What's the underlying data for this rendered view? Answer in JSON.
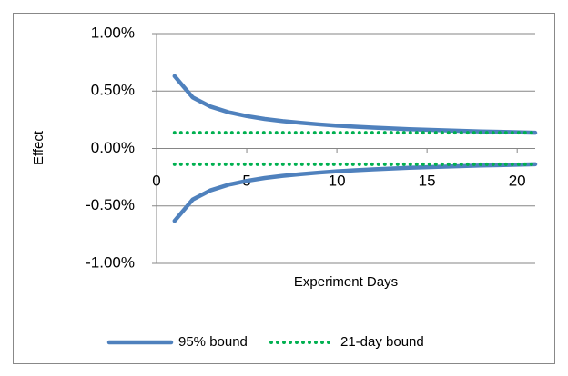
{
  "chart_data": {
    "type": "line",
    "x_label": "Experiment Days",
    "y_label": "Effect",
    "x": [
      1,
      2,
      3,
      4,
      5,
      6,
      7,
      8,
      9,
      10,
      11,
      12,
      13,
      14,
      15,
      16,
      17,
      18,
      19,
      20,
      21
    ],
    "series": [
      {
        "name": "95% bound",
        "color": "#4f81bd",
        "style": "solid",
        "values": [
          0.63,
          0.445,
          0.364,
          0.315,
          0.282,
          0.257,
          0.238,
          0.223,
          0.21,
          0.199,
          0.19,
          0.182,
          0.175,
          0.168,
          0.163,
          0.158,
          0.153,
          0.148,
          0.145,
          0.141,
          0.137
        ],
        "lower": [
          -0.63,
          -0.445,
          -0.364,
          -0.315,
          -0.282,
          -0.257,
          -0.238,
          -0.223,
          -0.21,
          -0.199,
          -0.19,
          -0.182,
          -0.175,
          -0.168,
          -0.163,
          -0.158,
          -0.153,
          -0.148,
          -0.145,
          -0.141,
          -0.137
        ]
      },
      {
        "name": "21-day bound",
        "color": "#00b050",
        "style": "dotted",
        "values": [
          0.137,
          0.137,
          0.137,
          0.137,
          0.137,
          0.137,
          0.137,
          0.137,
          0.137,
          0.137,
          0.137,
          0.137,
          0.137,
          0.137,
          0.137,
          0.137,
          0.137,
          0.137,
          0.137,
          0.137,
          0.137
        ],
        "lower": [
          -0.137,
          -0.137,
          -0.137,
          -0.137,
          -0.137,
          -0.137,
          -0.137,
          -0.137,
          -0.137,
          -0.137,
          -0.137,
          -0.137,
          -0.137,
          -0.137,
          -0.137,
          -0.137,
          -0.137,
          -0.137,
          -0.137,
          -0.137,
          -0.137
        ]
      }
    ],
    "xlim": [
      0,
      21
    ],
    "xticks": [
      0,
      5,
      10,
      15,
      20
    ],
    "ylim": [
      -1,
      1
    ],
    "yticks": [
      {
        "value": 1,
        "label": "1.00%"
      },
      {
        "value": 0.5,
        "label": "0.50%"
      },
      {
        "value": 0,
        "label": "0.00%"
      },
      {
        "value": -0.5,
        "label": "-0.50%"
      },
      {
        "value": -1,
        "label": "-1.00%"
      }
    ],
    "grid": true,
    "legend": "bottom"
  }
}
